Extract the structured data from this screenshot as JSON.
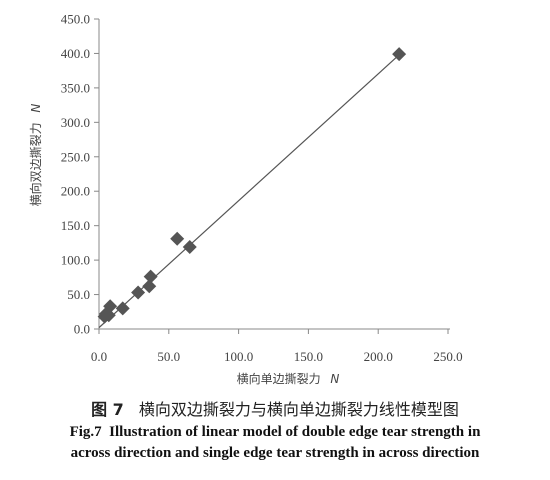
{
  "chart_data": {
    "type": "scatter",
    "xlabel_text": "横向单边撕裂力",
    "xlabel_unit": "N",
    "ylabel_text": "横向双边撕裂力",
    "ylabel_unit": "N",
    "xlim": [
      0,
      250
    ],
    "ylim": [
      0,
      450
    ],
    "xticks": [
      "0.0",
      "50.0",
      "100.0",
      "150.0",
      "200.0",
      "250.0"
    ],
    "yticks": [
      "0.0",
      "50.0",
      "100.0",
      "150.0",
      "200.0",
      "250.0",
      "300.0",
      "350.0",
      "400.0",
      "450.0"
    ],
    "grid": false,
    "marker": "diamond",
    "marker_color": "#555555",
    "line_color": "#555555",
    "points": [
      {
        "x": 4,
        "y": 18
      },
      {
        "x": 5,
        "y": 22
      },
      {
        "x": 7,
        "y": 20
      },
      {
        "x": 8,
        "y": 33
      },
      {
        "x": 17,
        "y": 30
      },
      {
        "x": 28,
        "y": 53
      },
      {
        "x": 36,
        "y": 62
      },
      {
        "x": 37,
        "y": 76
      },
      {
        "x": 56,
        "y": 131
      },
      {
        "x": 65,
        "y": 119
      },
      {
        "x": 215,
        "y": 399
      }
    ],
    "fit_line": {
      "x": [
        0,
        215
      ],
      "y": [
        2,
        398
      ]
    }
  },
  "caption": {
    "cn_number": "图 7",
    "cn_text": "横向双边撕裂力与横向单边撕裂力线性模型图",
    "en_line1": "Fig.7  Illustration of linear model of double edge tear strength in",
    "en_line2": "across direction and single edge tear strength in across direction"
  }
}
